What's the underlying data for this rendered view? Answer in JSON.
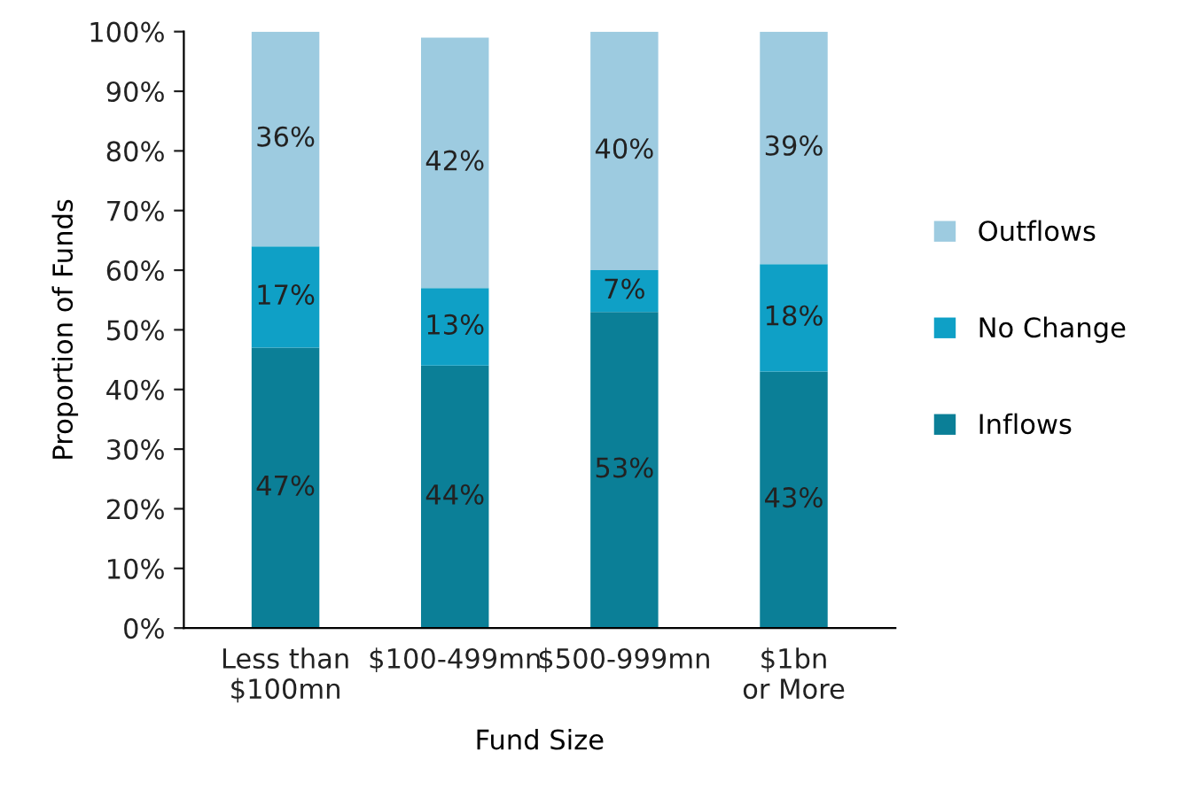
{
  "chart_data": {
    "type": "bar",
    "stacked": true,
    "xlabel": "Fund Size",
    "ylabel": "Proportion of Funds",
    "categories": [
      "Less than\n$100mn",
      "$100-499mn",
      "$500-999mn",
      "$1bn\nor More"
    ],
    "series": [
      {
        "name": "Inflows",
        "color": "#0b7f97",
        "values": [
          47,
          44,
          53,
          43
        ],
        "value_labels": [
          "47%",
          "44%",
          "53%",
          "43%"
        ]
      },
      {
        "name": "No Change",
        "color": "#0fa0c6",
        "values": [
          17,
          13,
          7,
          18
        ],
        "value_labels": [
          "17%",
          "13%",
          "7%",
          "18%"
        ]
      },
      {
        "name": "Outflows",
        "color": "#9dcbe0",
        "values": [
          36,
          42,
          40,
          39
        ],
        "value_labels": [
          "36%",
          "42%",
          "40%",
          "39%"
        ]
      }
    ],
    "ylim": [
      0,
      100
    ],
    "yticks": [
      {
        "value": 0,
        "label": "0%"
      },
      {
        "value": 10,
        "label": "10%"
      },
      {
        "value": 20,
        "label": "20%"
      },
      {
        "value": 30,
        "label": "30%"
      },
      {
        "value": 40,
        "label": "40%"
      },
      {
        "value": 50,
        "label": "50%"
      },
      {
        "value": 60,
        "label": "60%"
      },
      {
        "value": 70,
        "label": "70%"
      },
      {
        "value": 80,
        "label": "80%"
      },
      {
        "value": 90,
        "label": "90%"
      },
      {
        "value": 100,
        "label": "100%"
      }
    ],
    "grid": false,
    "legend": "right"
  }
}
